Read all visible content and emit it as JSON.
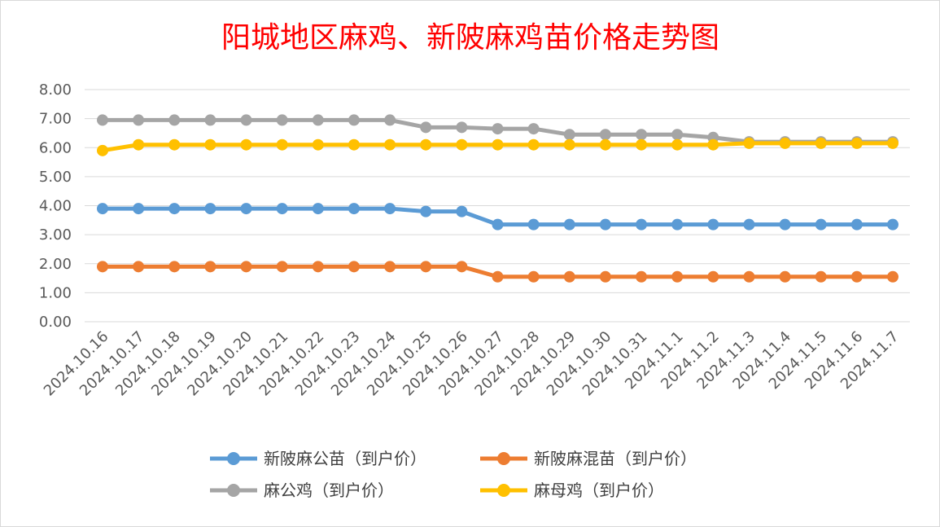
{
  "chart_data": {
    "type": "line",
    "title": "阳城地区麻鸡、新陂麻鸡苗价格走势图",
    "xlabel": "",
    "ylabel": "",
    "ylim": [
      0,
      8
    ],
    "yticks": [
      "0.00",
      "1.00",
      "2.00",
      "3.00",
      "4.00",
      "5.00",
      "6.00",
      "7.00",
      "8.00"
    ],
    "grid": true,
    "legend_position": "bottom",
    "categories": [
      "2024.10.16",
      "2024.10.17",
      "2024.10.18",
      "2024.10.19",
      "2024.10.20",
      "2024.10.21",
      "2024.10.22",
      "2024.10.23",
      "2024.10.24",
      "2024.10.25",
      "2024.10.26",
      "2024.10.27",
      "2024.10.28",
      "2024.10.29",
      "2024.10.30",
      "2024.10.31",
      "2024.11.1",
      "2024.11.2",
      "2024.11.3",
      "2024.11.4",
      "2024.11.5",
      "2024.11.6",
      "2024.11.7"
    ],
    "series": [
      {
        "name": "新陂麻公苗（到户价）",
        "color": "#5b9bd5",
        "values": [
          3.9,
          3.9,
          3.9,
          3.9,
          3.9,
          3.9,
          3.9,
          3.9,
          3.9,
          3.8,
          3.8,
          3.35,
          3.35,
          3.35,
          3.35,
          3.35,
          3.35,
          3.35,
          3.35,
          3.35,
          3.35,
          3.35,
          3.35
        ]
      },
      {
        "name": "新陂麻混苗（到户价）",
        "color": "#ed7d31",
        "values": [
          1.9,
          1.9,
          1.9,
          1.9,
          1.9,
          1.9,
          1.9,
          1.9,
          1.9,
          1.9,
          1.9,
          1.55,
          1.55,
          1.55,
          1.55,
          1.55,
          1.55,
          1.55,
          1.55,
          1.55,
          1.55,
          1.55,
          1.55
        ]
      },
      {
        "name": "麻公鸡（到户价）",
        "color": "#a5a5a5",
        "values": [
          6.95,
          6.95,
          6.95,
          6.95,
          6.95,
          6.95,
          6.95,
          6.95,
          6.95,
          6.7,
          6.7,
          6.65,
          6.65,
          6.45,
          6.45,
          6.45,
          6.45,
          6.35,
          6.2,
          6.2,
          6.2,
          6.2,
          6.2
        ]
      },
      {
        "name": "麻母鸡（到户价）",
        "color": "#ffc000",
        "values": [
          5.9,
          6.1,
          6.1,
          6.1,
          6.1,
          6.1,
          6.1,
          6.1,
          6.1,
          6.1,
          6.1,
          6.1,
          6.1,
          6.1,
          6.1,
          6.1,
          6.1,
          6.1,
          6.15,
          6.15,
          6.15,
          6.15,
          6.15
        ]
      }
    ]
  }
}
